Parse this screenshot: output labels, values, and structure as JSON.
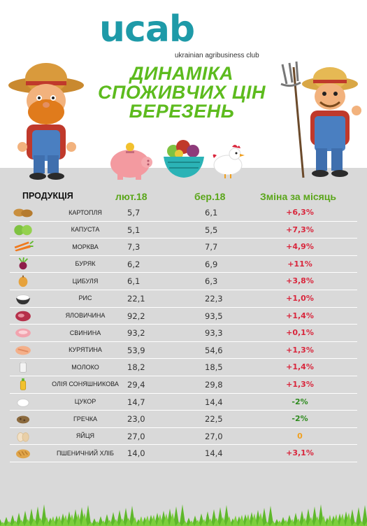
{
  "logo": {
    "word": "ucab",
    "subtitle": "ukrainian agribusiness club"
  },
  "title": {
    "line1": "ДИНАМІКА",
    "line2": "СПОЖИВЧИХ ЦІН",
    "line3": "БЕРЕЗЕНЬ"
  },
  "colors": {
    "brand": "#1e9aa8",
    "accent_green": "#5dbb1e",
    "increase": "#d9263c",
    "decrease": "#2e8b1e",
    "zero": "#f0a020"
  },
  "table": {
    "headers": {
      "product": "ПРОДУКЦІЯ",
      "feb": "лют.18",
      "mar": "бер.18",
      "change": "Зміна за місяць"
    },
    "rows": [
      {
        "icon": "potato-icon",
        "name": "КАРТОПЛЯ",
        "feb": "5,7",
        "mar": "6,1",
        "change": "+6,3%",
        "trend": "up"
      },
      {
        "icon": "cabbage-icon",
        "name": "КАПУСТА",
        "feb": "5,1",
        "mar": "5,5",
        "change": "+7,3%",
        "trend": "up"
      },
      {
        "icon": "carrot-icon",
        "name": "МОРКВА",
        "feb": "7,3",
        "mar": "7,7",
        "change": "+4,9%",
        "trend": "up"
      },
      {
        "icon": "beet-icon",
        "name": "БУРЯК",
        "feb": "6,2",
        "mar": "6,9",
        "change": "+11%",
        "trend": "up"
      },
      {
        "icon": "onion-icon",
        "name": "ЦИБУЛЯ",
        "feb": "6,1",
        "mar": "6,3",
        "change": "+3,8%",
        "trend": "up"
      },
      {
        "icon": "rice-icon",
        "name": "РИС",
        "feb": "22,1",
        "mar": "22,3",
        "change": "+1,0%",
        "trend": "up"
      },
      {
        "icon": "beef-icon",
        "name": "ЯЛОВИЧИНА",
        "feb": "92,2",
        "mar": "93,5",
        "change": "+1,4%",
        "trend": "up"
      },
      {
        "icon": "pork-icon",
        "name": "СВИНИНА",
        "feb": "93,2",
        "mar": "93,3",
        "change": "+0,1%",
        "trend": "up"
      },
      {
        "icon": "chicken-meat-icon",
        "name": "КУРЯТИНА",
        "feb": "53,9",
        "mar": "54,6",
        "change": "+1,3%",
        "trend": "up"
      },
      {
        "icon": "milk-icon",
        "name": "МОЛОКО",
        "feb": "18,2",
        "mar": "18,5",
        "change": "+1,4%",
        "trend": "up"
      },
      {
        "icon": "oil-icon",
        "name": "ОЛІЯ СОНЯШНИКОВА",
        "feb": "29,4",
        "mar": "29,8",
        "change": "+1,3%",
        "trend": "up"
      },
      {
        "icon": "sugar-icon",
        "name": "ЦУКОР",
        "feb": "14,7",
        "mar": "14,4",
        "change": "-2%",
        "trend": "down"
      },
      {
        "icon": "buckwheat-icon",
        "name": "ГРЕЧКА",
        "feb": "23,0",
        "mar": "22,5",
        "change": "-2%",
        "trend": "down"
      },
      {
        "icon": "eggs-icon",
        "name": "ЯЙЦЯ",
        "feb": "27,0",
        "mar": "27,0",
        "change": "0",
        "trend": "zero"
      },
      {
        "icon": "bread-icon",
        "name": "ПШЕНИЧНИЙ ХЛІБ",
        "feb": "14,0",
        "mar": "14,4",
        "change": "+3,1%",
        "trend": "up"
      }
    ]
  }
}
